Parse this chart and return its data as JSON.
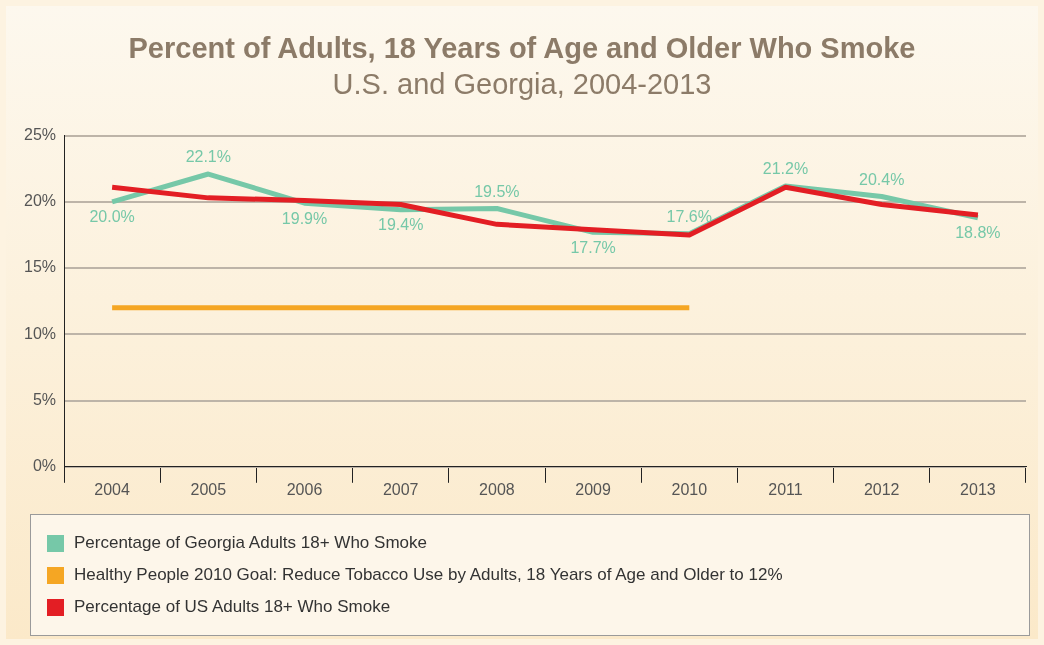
{
  "chart_data": {
    "type": "line",
    "title": "Percent of Adults, 18 Years of Age and Older Who Smoke",
    "subtitle": "U.S. and Georgia, 2004-2013",
    "categories": [
      "2004",
      "2005",
      "2006",
      "2007",
      "2008",
      "2009",
      "2010",
      "2011",
      "2012",
      "2013"
    ],
    "series": [
      {
        "name": "Percentage of Georgia Adults 18+ Who Smoke",
        "color": "#76c8a8",
        "values": [
          20.0,
          22.1,
          19.9,
          19.4,
          19.5,
          17.7,
          17.6,
          21.2,
          20.4,
          18.8
        ],
        "value_labels": [
          "20.0%",
          "22.1%",
          "19.9%",
          "19.4%",
          "19.5%",
          "17.7%",
          "17.6%",
          "21.2%",
          "20.4%",
          "18.8%"
        ]
      },
      {
        "name": "Healthy People 2010 Goal: Reduce Tobacco Use by Adults, 18 Years of Age and Older to 12%",
        "color": "#f5a623",
        "values": [
          12,
          12,
          12,
          12,
          12,
          12,
          12,
          null,
          null,
          null
        ]
      },
      {
        "name": "Percentage of US Adults 18+ Who Smoke",
        "color": "#e31e24",
        "values": [
          21.1,
          20.3,
          20.1,
          19.8,
          18.3,
          17.9,
          17.5,
          21.1,
          19.8,
          19.0
        ]
      }
    ],
    "ylim": [
      0,
      25
    ],
    "yticks": [
      {
        "value": 0,
        "label": "0%"
      },
      {
        "value": 5,
        "label": "5%"
      },
      {
        "value": 10,
        "label": "10%"
      },
      {
        "value": 15,
        "label": "15%"
      },
      {
        "value": 20,
        "label": "20%"
      },
      {
        "value": 25,
        "label": "25%"
      }
    ],
    "grid": "y",
    "legend": "bottom",
    "marker": "none",
    "line_style": "solid"
  }
}
